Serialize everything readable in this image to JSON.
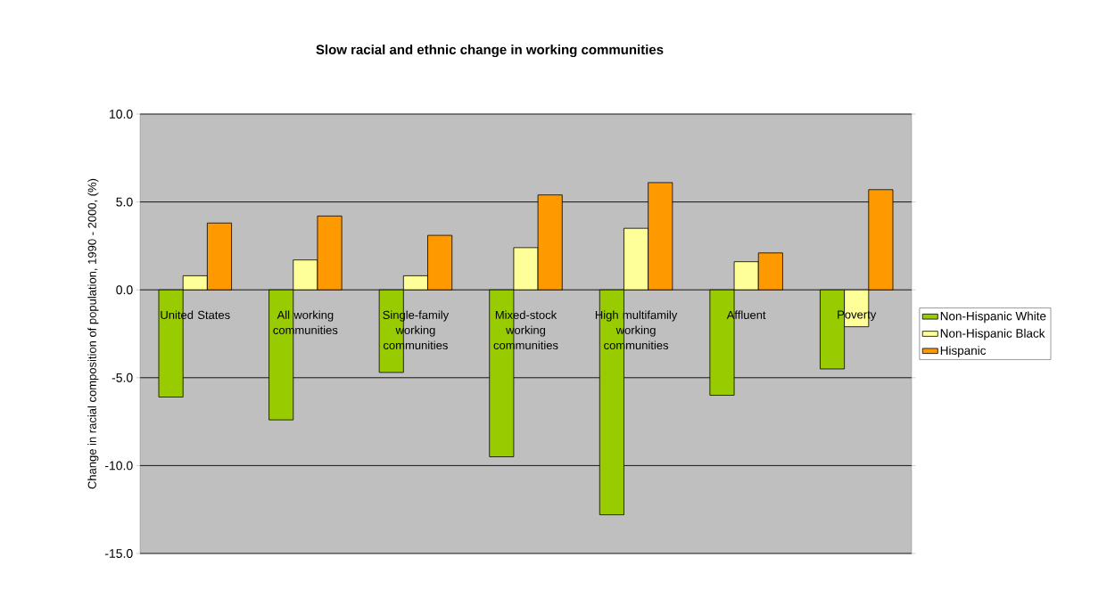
{
  "chart_data": {
    "type": "bar",
    "title": "Slow racial and ethnic change in working communities",
    "ylabel": "Change in racial composition of population, 1990 - 2000, (%)",
    "categories": [
      "United States",
      "All working communities",
      "Single-family working communities",
      "Mixed-stock working communities",
      "High multifamily working communities",
      "Affluent",
      "Poverty"
    ],
    "series": [
      {
        "name": "Non-Hispanic White",
        "color": "#99cc00",
        "values": [
          -6.1,
          -7.4,
          -4.7,
          -9.5,
          -12.8,
          -6.0,
          -4.5
        ]
      },
      {
        "name": "Non-Hispanic Black",
        "color": "#ffff99",
        "values": [
          0.8,
          1.7,
          0.8,
          2.4,
          3.5,
          1.6,
          -2.1
        ]
      },
      {
        "name": "Hispanic",
        "color": "#ff9900",
        "values": [
          3.8,
          4.2,
          3.1,
          5.4,
          6.1,
          2.1,
          5.7
        ]
      }
    ],
    "ylim": [
      -15,
      10
    ],
    "yticks": [
      {
        "value": -15,
        "label": "-15.0"
      },
      {
        "value": -10,
        "label": "-10.0"
      },
      {
        "value": -5,
        "label": "-5.0"
      },
      {
        "value": 0,
        "label": "0.0"
      },
      {
        "value": 5,
        "label": "5.0"
      },
      {
        "value": 10,
        "label": "10.0"
      }
    ],
    "grid": "y",
    "legend": "right"
  }
}
